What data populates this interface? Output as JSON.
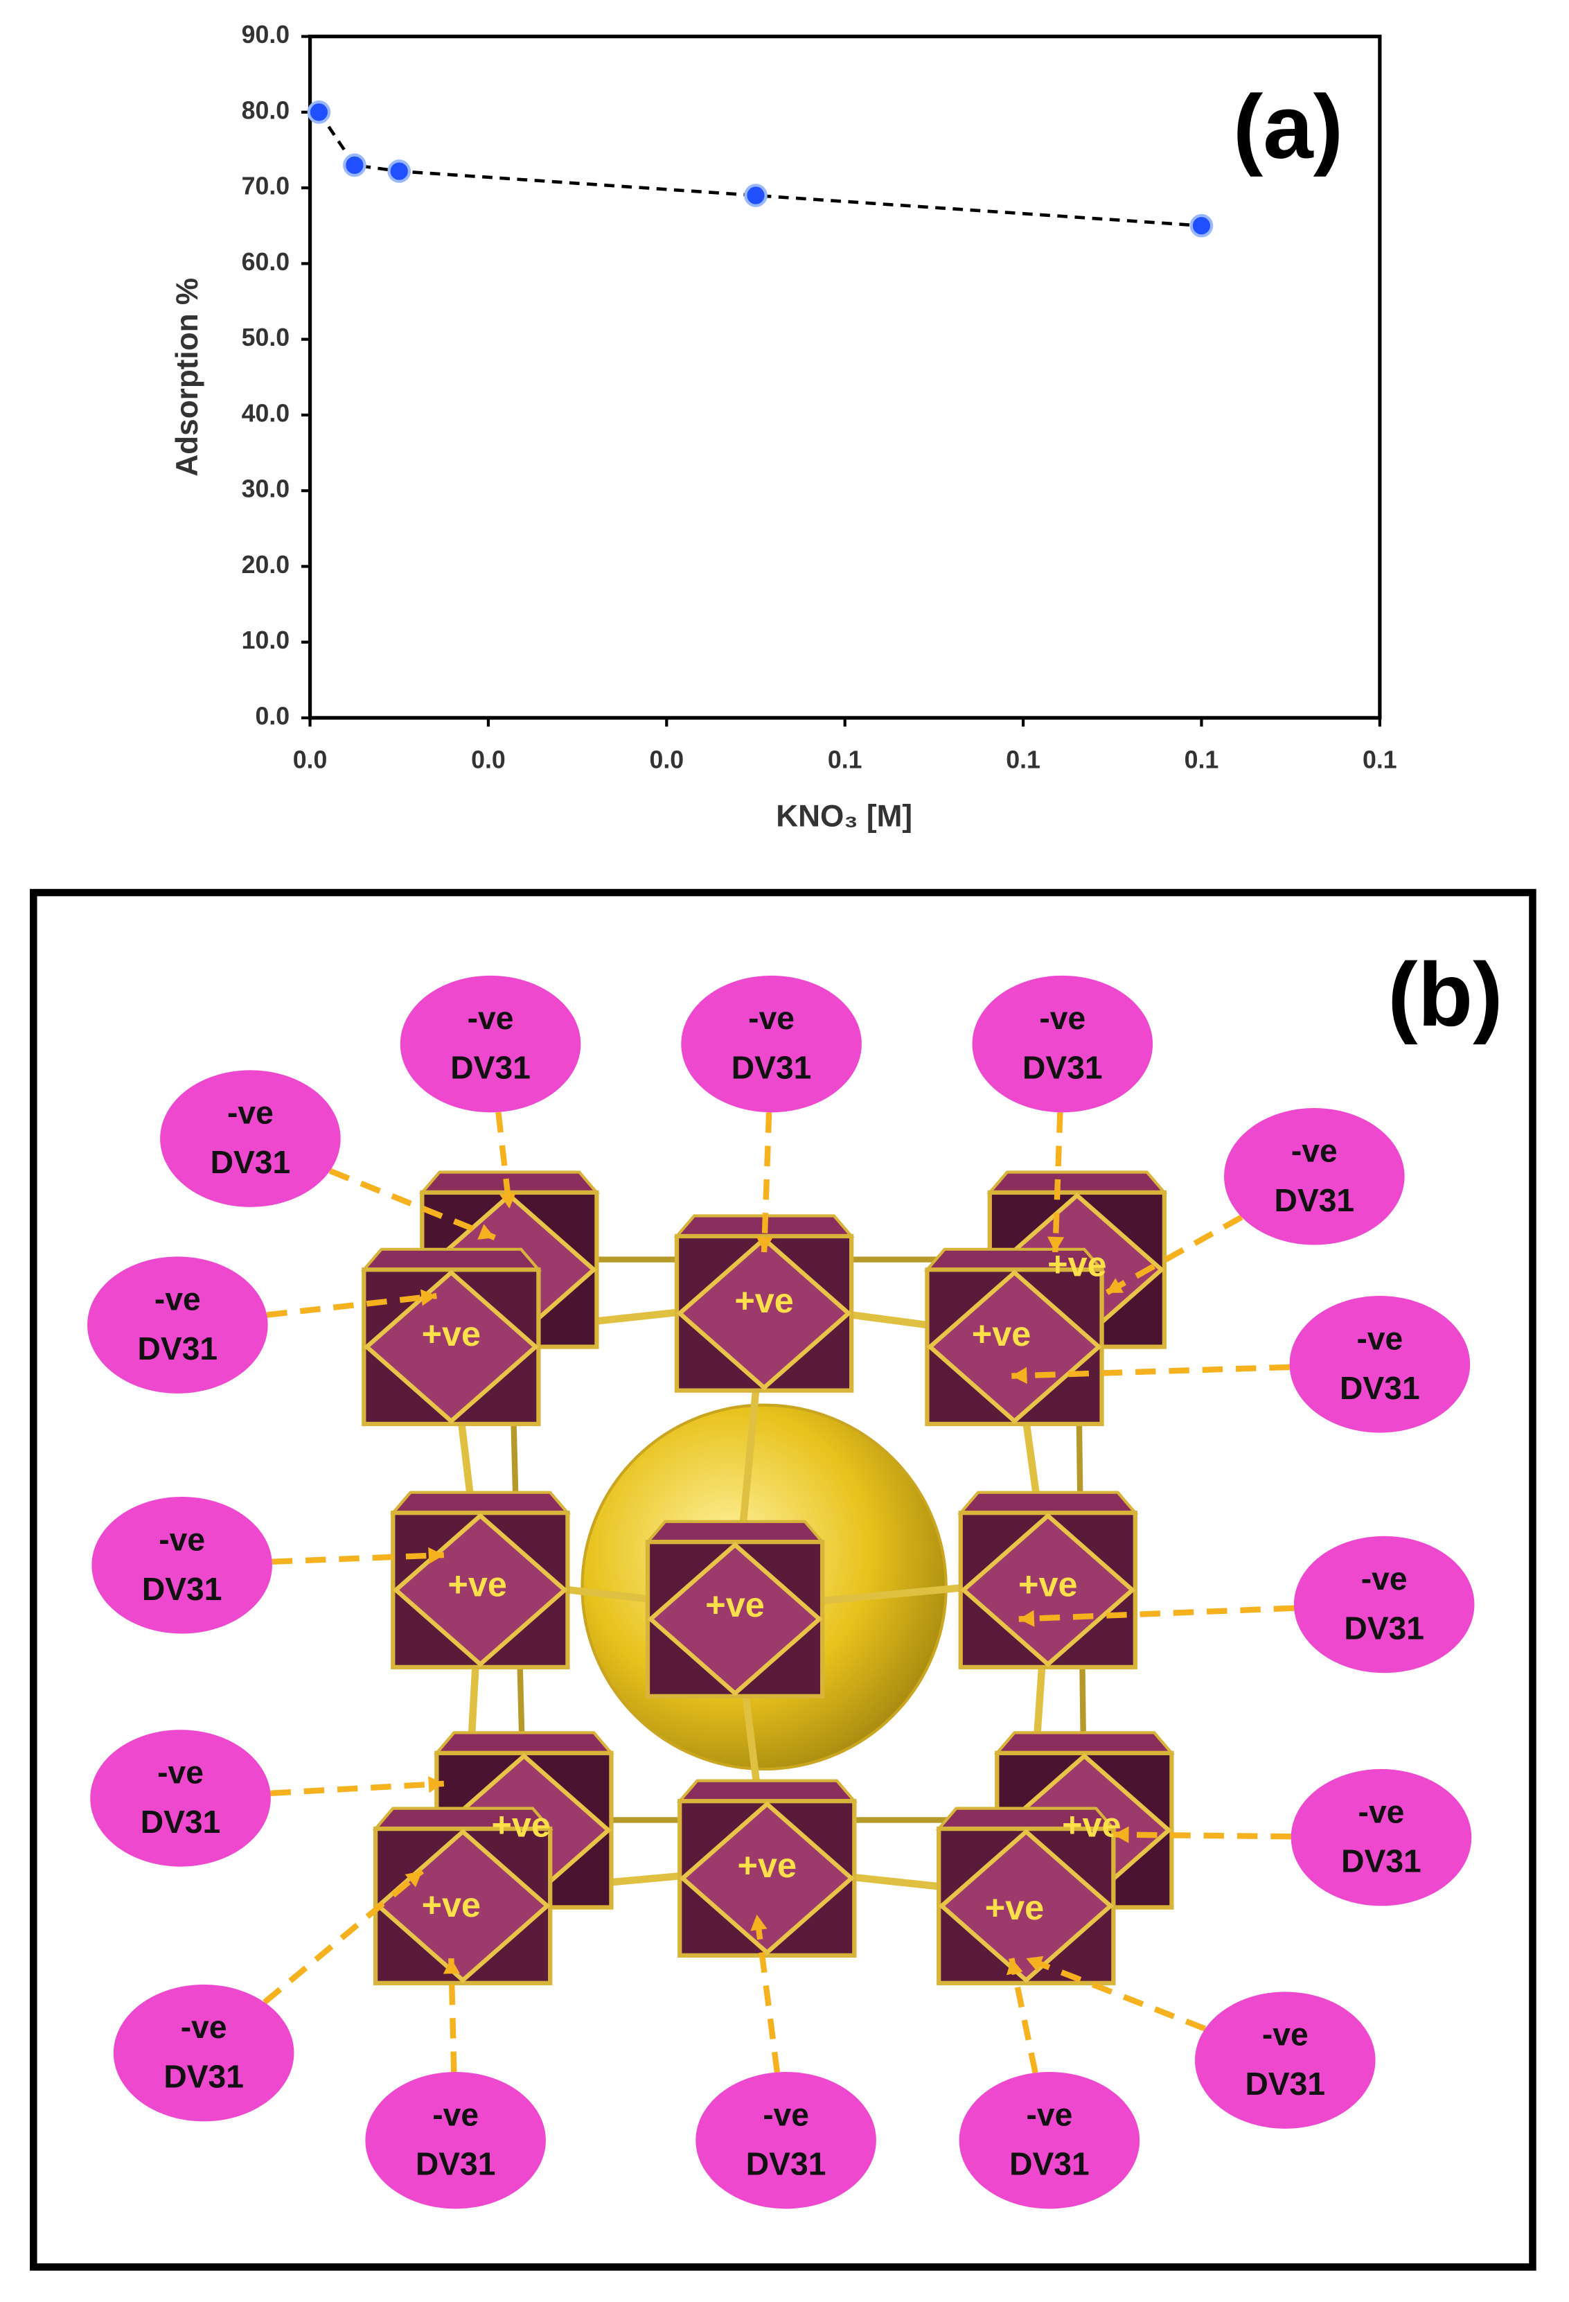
{
  "chart_data": {
    "type": "line",
    "annotation": "(a)",
    "y_label": "Adsorption %",
    "x_label": "KNO₃ [M]",
    "x": [
      0.001,
      0.005,
      0.01,
      0.05,
      0.1
    ],
    "series": [
      {
        "values": [
          80,
          73,
          72.2,
          69,
          65
        ],
        "color": "#1f4fff",
        "line_color": "#000000"
      }
    ],
    "xlim": [
      0,
      0.12
    ],
    "xticks": [
      {
        "value": 0,
        "label": "0.0"
      },
      {
        "value": 0.02,
        "label": "0.0"
      },
      {
        "value": 0.04,
        "label": "0.0"
      },
      {
        "value": 0.06,
        "label": "0.1"
      },
      {
        "value": 0.08,
        "label": "0.1"
      },
      {
        "value": 0.1,
        "label": "0.1"
      },
      {
        "value": 0.12,
        "label": "0.1"
      }
    ],
    "ylim": [
      0,
      90
    ],
    "yticks": [
      {
        "value": 0,
        "label": "0.0"
      },
      {
        "value": 10,
        "label": "10.0"
      },
      {
        "value": 20,
        "label": "20.0"
      },
      {
        "value": 30,
        "label": "30.0"
      },
      {
        "value": 40,
        "label": "40.0"
      },
      {
        "value": 50,
        "label": "50.0"
      },
      {
        "value": 60,
        "label": "60.0"
      },
      {
        "value": 70,
        "label": "70.0"
      },
      {
        "value": 80,
        "label": "80.0"
      },
      {
        "value": 90,
        "label": "90.0"
      }
    ]
  },
  "diagram": {
    "label": "(b)",
    "anions": [
      {
        "charge": "-ve",
        "name": "DV31"
      },
      {
        "charge": "-ve",
        "name": "DV31"
      },
      {
        "charge": "-ve",
        "name": "DV31"
      },
      {
        "charge": "-ve",
        "name": "DV31"
      },
      {
        "charge": "-ve",
        "name": "DV31"
      },
      {
        "charge": "-ve",
        "name": "DV31"
      },
      {
        "charge": "-ve",
        "name": "DV31"
      },
      {
        "charge": "-ve",
        "name": "DV31"
      },
      {
        "charge": "-ve",
        "name": "DV31"
      },
      {
        "charge": "-ve",
        "name": "DV31"
      },
      {
        "charge": "-ve",
        "name": "DV31"
      },
      {
        "charge": "-ve",
        "name": "DV31"
      },
      {
        "charge": "-ve",
        "name": "DV31"
      },
      {
        "charge": "-ve",
        "name": "DV31"
      },
      {
        "charge": "-ve",
        "name": "DV31"
      },
      {
        "charge": "-ve",
        "name": "DV31"
      }
    ],
    "cations": [
      "+ve",
      "+ve",
      "+ve",
      "+ve",
      "+ve",
      "+ve",
      "+ve",
      "+ve",
      "+ve",
      "+ve",
      "+ve",
      "+ve"
    ]
  }
}
